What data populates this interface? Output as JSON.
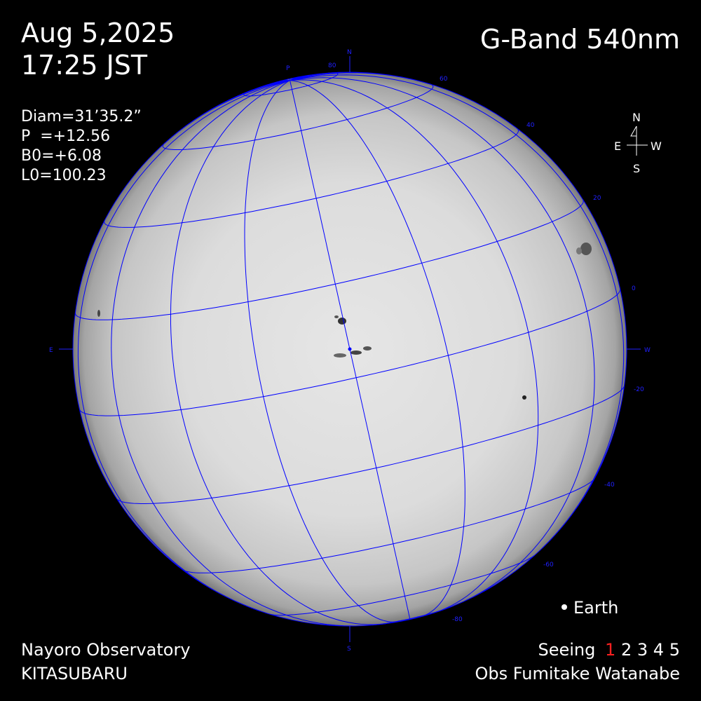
{
  "header": {
    "date": "Aug 5,2025",
    "time": "17:25 JST",
    "band": "G-Band 540nm"
  },
  "ephemeris": {
    "diam": "Diam=31’35.2”",
    "p": "P  =+12.56",
    "b0": "B0=+6.08",
    "l0": "L0=100.23"
  },
  "compass": {
    "north": "N",
    "south": "S",
    "east": "E",
    "west": "W"
  },
  "limb_labels": {
    "north": "N",
    "south": "S",
    "east": "E",
    "west": "W",
    "pole": "P"
  },
  "latitude_ticks": [
    "80",
    "60",
    "40",
    "20",
    "0",
    "-20",
    "-40",
    "-60",
    "-80"
  ],
  "legend": {
    "earth": "Earth"
  },
  "footer": {
    "observatory": "Nayoro Observatory",
    "telescope": "KITASUBARU",
    "seeing_label": "Seeing",
    "seeing_values": [
      "1",
      "2",
      "3",
      "4",
      "5"
    ],
    "seeing_selected": 1,
    "observer": "Obs Fumitake Watanabe"
  },
  "grid": {
    "p_angle_deg": 12.56,
    "b0_deg": 6.08,
    "spacing_deg": 20,
    "color": "#0000ff"
  },
  "colors": {
    "grid": "#0000ff",
    "seeing_selected": "#ff2020",
    "text": "#ffffff"
  }
}
